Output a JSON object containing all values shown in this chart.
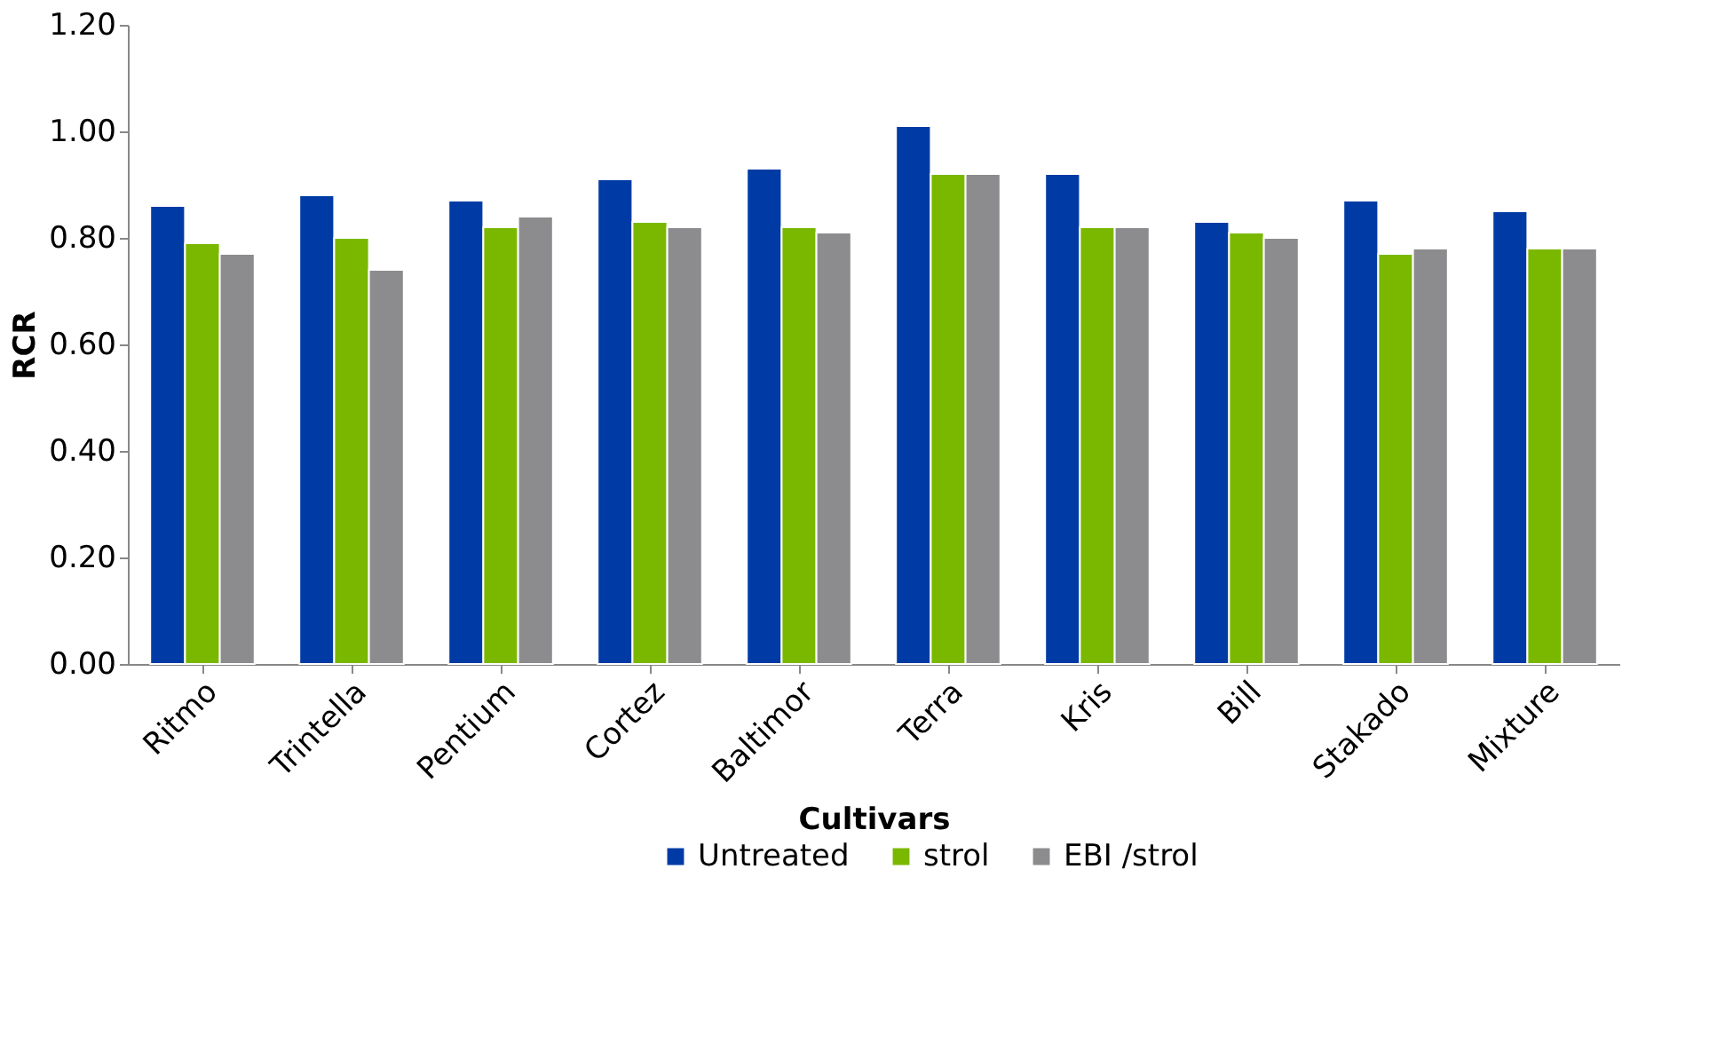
{
  "chart_data": {
    "type": "bar",
    "xlabel": "Cultivars",
    "ylabel": "RCR",
    "categories": [
      "Ritmo",
      "Trintella",
      "Pentium",
      "Cortez",
      "Baltimor",
      "Terra",
      "Kris",
      "Bill",
      "Stakado",
      "Mixture"
    ],
    "series": [
      {
        "name": "Untreated",
        "color": "#003ba5",
        "values": [
          0.86,
          0.88,
          0.87,
          0.91,
          0.93,
          1.01,
          0.92,
          0.83,
          0.87,
          0.85
        ]
      },
      {
        "name": "strol",
        "color": "#7ab800",
        "values": [
          0.79,
          0.8,
          0.82,
          0.83,
          0.82,
          0.92,
          0.82,
          0.81,
          0.77,
          0.78
        ]
      },
      {
        "name": "EBI /strol",
        "color": "#8c8c8e",
        "values": [
          0.77,
          0.74,
          0.84,
          0.82,
          0.81,
          0.92,
          0.82,
          0.8,
          0.78,
          0.78
        ]
      }
    ],
    "ylim": [
      0,
      1.2
    ],
    "yticks": [
      {
        "value": 0,
        "label": "0.00"
      },
      {
        "value": 0.2,
        "label": "0.20"
      },
      {
        "value": 0.4,
        "label": "0.40"
      },
      {
        "value": 0.6,
        "label": "0.60"
      },
      {
        "value": 0.8,
        "label": "0.80"
      },
      {
        "value": 1.0,
        "label": "1.00"
      },
      {
        "value": 1.2,
        "label": "1.20"
      }
    ],
    "grid": false,
    "legend": "bottom"
  }
}
